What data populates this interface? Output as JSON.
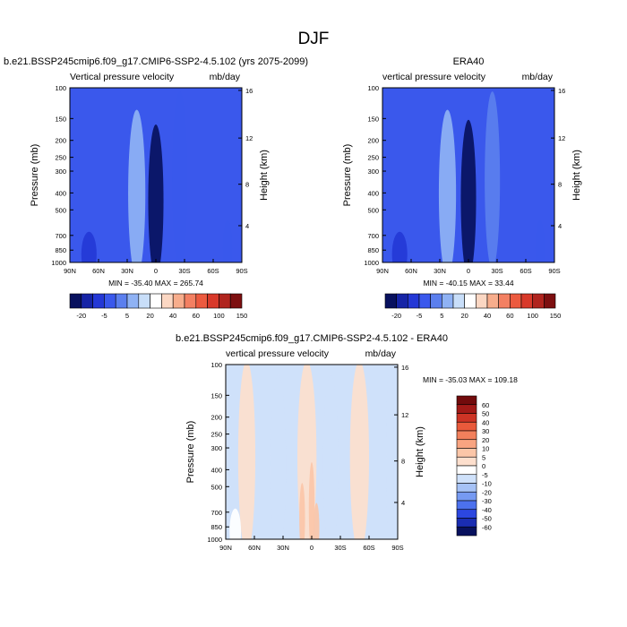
{
  "page_title": "DJF",
  "colors": {
    "cbar_top": [
      "#08115e",
      "#1624a6",
      "#2438d6",
      "#3a58ec",
      "#5b7fee",
      "#8fb2f4",
      "#c8def9",
      "#ffffff",
      "#fbd7c3",
      "#f7ad8c",
      "#f38062",
      "#ec5a3f",
      "#d8392a",
      "#b0241e",
      "#7d0f10"
    ],
    "cbar_diff": [
      "#08115e",
      "#1a2db2",
      "#2c47e0",
      "#4c71ee",
      "#769af2",
      "#a6c2f6",
      "#cfe1fa",
      "#ffffff",
      "#fddfcd",
      "#fbc6a8",
      "#f8a481",
      "#f2805c",
      "#e95a3b",
      "#cd3425",
      "#a21a17",
      "#720b0c"
    ]
  },
  "chart_data": [
    {
      "id": "model",
      "type": "heatmap",
      "title": "b.e21.BSSP245cmip6.f09_g17.CMIP6-SSP2-4.5.102 (yrs 2075-2099)",
      "subtitle_left": "Vertical pressure velocity",
      "subtitle_right": "mb/day",
      "xlabel": "",
      "ylabel": "Pressure (mb)",
      "ylabel_right": "Height (km)",
      "x_ticks": [
        "90N",
        "60N",
        "30N",
        "0",
        "30S",
        "60S",
        "90S"
      ],
      "y_ticks": [
        {
          "p": 100,
          "label": "100"
        },
        {
          "p": 150,
          "label": "150"
        },
        {
          "p": 200,
          "label": "200"
        },
        {
          "p": 250,
          "label": "250"
        },
        {
          "p": 300,
          "label": "300"
        },
        {
          "p": 400,
          "label": "400"
        },
        {
          "p": 500,
          "label": "500"
        },
        {
          "p": 700,
          "label": "700"
        },
        {
          "p": 850,
          "label": "850"
        },
        {
          "p": 1000,
          "label": "1000"
        }
      ],
      "y_ticks_right": [
        {
          "p": 103.5,
          "label": "16"
        },
        {
          "p": 194.0,
          "label": "12"
        },
        {
          "p": 356.5,
          "label": "8"
        },
        {
          "p": 616.0,
          "label": "4"
        }
      ],
      "stats": "MIN = -35.40  MAX = 265.74",
      "min": -35.4,
      "max": 265.74,
      "features": [
        {
          "center_lat": 0,
          "level": 0.0,
          "width": 8,
          "bottom": 1000,
          "top": 170
        },
        {
          "center_lat": 20,
          "level": 5.0,
          "width": 9,
          "bottom": 1000,
          "top": 140
        },
        {
          "center_lat": -25,
          "level": 3.0,
          "width": 8,
          "bottom": 900,
          "top": 110
        },
        {
          "center_lat": 70,
          "level": 1.5,
          "width": 8,
          "bottom": 1000,
          "top": 700
        },
        {
          "center_lat": -75,
          "level": 2.5,
          "width": 5,
          "bottom": 1000,
          "top": 600
        }
      ],
      "colorbar_labels": [
        "-20",
        "-5",
        "5",
        "20",
        "40",
        "60",
        "100",
        "150"
      ]
    },
    {
      "id": "obs",
      "type": "heatmap",
      "title": "ERA40",
      "subtitle_left": "vertical pressure velocity",
      "subtitle_right": "mb/day",
      "xlabel": "",
      "ylabel": "Pressure (mb)",
      "ylabel_right": "Height (km)",
      "x_ticks": [
        "90N",
        "60N",
        "30N",
        "0",
        "30S",
        "60S",
        "90S"
      ],
      "y_ticks": [
        {
          "p": 100,
          "label": "100"
        },
        {
          "p": 150,
          "label": "150"
        },
        {
          "p": 200,
          "label": "200"
        },
        {
          "p": 250,
          "label": "250"
        },
        {
          "p": 300,
          "label": "300"
        },
        {
          "p": 400,
          "label": "400"
        },
        {
          "p": 500,
          "label": "500"
        },
        {
          "p": 700,
          "label": "700"
        },
        {
          "p": 850,
          "label": "850"
        },
        {
          "p": 1000,
          "label": "1000"
        }
      ],
      "y_ticks_right": [
        {
          "p": 103.5,
          "label": "16"
        },
        {
          "p": 194.0,
          "label": "12"
        },
        {
          "p": 356.5,
          "label": "8"
        },
        {
          "p": 616.0,
          "label": "4"
        }
      ],
      "stats": "MIN = -40.15  MAX = 33.44",
      "min": -40.15,
      "max": 33.44,
      "features": [
        {
          "center_lat": 0,
          "level": 0.0,
          "width": 8,
          "bottom": 1000,
          "top": 160
        },
        {
          "center_lat": 22,
          "level": 5.2,
          "width": 9,
          "bottom": 1000,
          "top": 140
        },
        {
          "center_lat": -25,
          "level": 3.5,
          "width": 8,
          "bottom": 900,
          "top": 110
        },
        {
          "center_lat": 72,
          "level": 1.5,
          "width": 8,
          "bottom": 1000,
          "top": 700
        },
        {
          "center_lat": -75,
          "level": 2.5,
          "width": 5,
          "bottom": 1000,
          "top": 600
        }
      ],
      "colorbar_labels": [
        "-20",
        "-5",
        "5",
        "20",
        "40",
        "60",
        "100",
        "150"
      ]
    },
    {
      "id": "diff",
      "type": "heatmap",
      "title": "b.e21.BSSP245cmip6.f09_g17.CMIP6-SSP2-4.5.102 - ERA40",
      "subtitle_left": "vertical pressure velocity",
      "subtitle_right": "mb/day",
      "xlabel": "",
      "ylabel": "Pressure (mb)",
      "ylabel_right": "Height (km)",
      "x_ticks": [
        "90N",
        "60N",
        "30N",
        "0",
        "30S",
        "60S",
        "90S"
      ],
      "y_ticks": [
        {
          "p": 100,
          "label": "100"
        },
        {
          "p": 150,
          "label": "150"
        },
        {
          "p": 200,
          "label": "200"
        },
        {
          "p": 250,
          "label": "250"
        },
        {
          "p": 300,
          "label": "300"
        },
        {
          "p": 400,
          "label": "400"
        },
        {
          "p": 500,
          "label": "500"
        },
        {
          "p": 700,
          "label": "700"
        },
        {
          "p": 850,
          "label": "850"
        },
        {
          "p": 1000,
          "label": "1000"
        }
      ],
      "y_ticks_right": [
        {
          "p": 103.5,
          "label": "16"
        },
        {
          "p": 194.0,
          "label": "12"
        },
        {
          "p": 356.5,
          "label": "8"
        },
        {
          "p": 616.0,
          "label": "4"
        }
      ],
      "stats": "MIN = -35.03  MAX = 109.18",
      "min": -35.03,
      "max": 109.18,
      "features": [
        {
          "center_lat": 68,
          "level": 8.0,
          "width": 9,
          "bottom": 1000,
          "top": 100
        },
        {
          "center_lat": 5,
          "level": 8.0,
          "width": 10,
          "bottom": 1000,
          "top": 100
        },
        {
          "center_lat": -50,
          "level": 8.0,
          "width": 10,
          "bottom": 1000,
          "top": 100
        },
        {
          "center_lat": -20,
          "level": 6.0,
          "width": 8,
          "bottom": 1000,
          "top": 120
        },
        {
          "center_lat": 35,
          "level": 6.0,
          "width": 8,
          "bottom": 1000,
          "top": 120
        },
        {
          "center_lat": -82,
          "level": 6.0,
          "width": 4,
          "bottom": 1000,
          "top": 100
        },
        {
          "center_lat": 80,
          "level": 6.5,
          "width": 6,
          "bottom": 1000,
          "top": 700
        },
        {
          "center_lat": 0,
          "level": 9.0,
          "width": 3,
          "bottom": 1000,
          "top": 380
        },
        {
          "center_lat": 10,
          "level": 9.0,
          "width": 3,
          "bottom": 1000,
          "top": 500
        },
        {
          "center_lat": -5,
          "level": 9.0,
          "width": 3,
          "bottom": 1000,
          "top": 650
        }
      ],
      "colorbar_labels": [
        "60",
        "50",
        "40",
        "30",
        "20",
        "10",
        "5",
        "0",
        "-5",
        "-10",
        "-20",
        "-30",
        "-40",
        "-50",
        "-60"
      ]
    }
  ]
}
